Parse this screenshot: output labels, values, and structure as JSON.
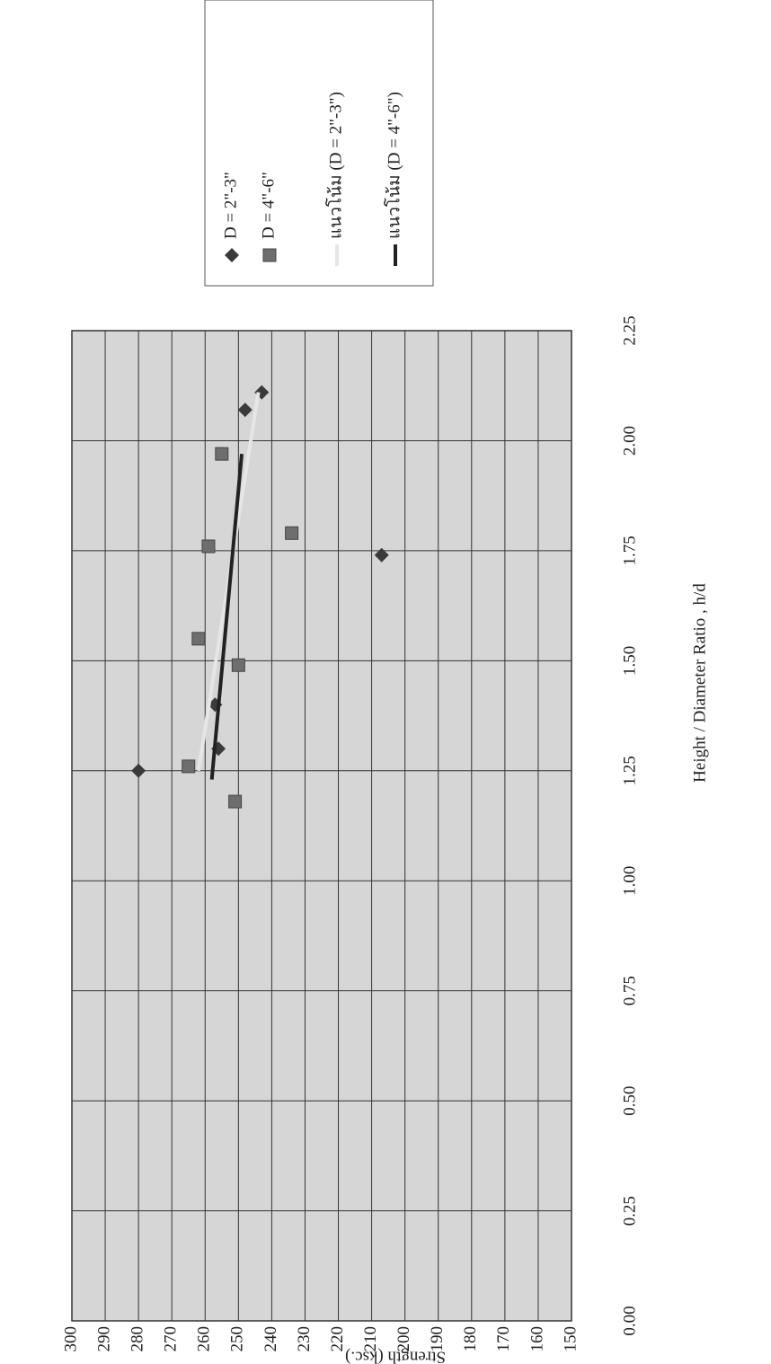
{
  "chart_data": {
    "type": "scatter",
    "x_label": "Height / Diameter Ratio , h/d",
    "y_label": "Strength (ksc.)",
    "xlim": [
      0,
      2.25
    ],
    "ylim": [
      150,
      300
    ],
    "xticks": [
      {
        "value": 0,
        "label": "0.00"
      },
      {
        "value": 0.25,
        "label": "0.25"
      },
      {
        "value": 0.5,
        "label": "0.50"
      },
      {
        "value": 0.75,
        "label": "0.75"
      },
      {
        "value": 1,
        "label": "1.00"
      },
      {
        "value": 1.25,
        "label": "1.25"
      },
      {
        "value": 1.5,
        "label": "1.50"
      },
      {
        "value": 1.75,
        "label": "1.75"
      },
      {
        "value": 2,
        "label": "2.00"
      },
      {
        "value": 2.25,
        "label": "2.25"
      }
    ],
    "yticks": [
      150,
      160,
      170,
      180,
      190,
      200,
      210,
      220,
      230,
      240,
      250,
      260,
      270,
      280,
      290,
      300
    ],
    "grid": true,
    "rotated": true,
    "series": [
      {
        "name": "D = 2\"-3\"",
        "color": "#3a3a3a",
        "marker": "diamond",
        "x": [
          1.25,
          1.3,
          1.4,
          2.07,
          2.11,
          1.74
        ],
        "values": [
          280,
          256,
          257,
          248,
          243,
          207
        ]
      },
      {
        "name": "D = 4\"-6\"",
        "color": "#6e6e6e",
        "marker": "square",
        "x": [
          1.26,
          1.18,
          1.55,
          1.49,
          1.76,
          1.79,
          1.97
        ],
        "values": [
          265,
          251,
          262,
          250,
          259,
          234,
          255
        ]
      },
      {
        "name": "แนวโน้ม (D = 2\"-3\")",
        "color": "#e6e6e6",
        "marker": "line",
        "x": [
          1.25,
          2.11
        ],
        "values": [
          262,
          244
        ]
      },
      {
        "name": "แนวโน้ม (D = 4\"-6\")",
        "color": "#222222",
        "marker": "line",
        "x": [
          1.23,
          1.97
        ],
        "values": [
          258,
          249
        ]
      }
    ]
  }
}
